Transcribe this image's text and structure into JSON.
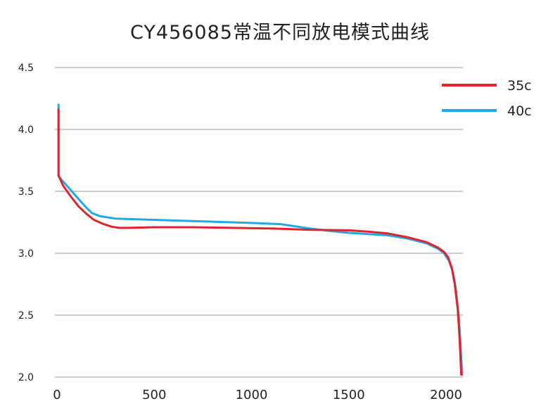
{
  "chart_data": {
    "type": "line",
    "title": "CY456085常温不同放电模式曲线",
    "xlabel": "",
    "ylabel": "",
    "xlim": [
      0,
      2200
    ],
    "ylim": [
      2.0,
      4.5
    ],
    "x_ticks": [
      "0",
      "500",
      "1000",
      "1500",
      "2000"
    ],
    "y_ticks": [
      "4.5",
      "4.0",
      "3.5",
      "3.0",
      "2.5",
      "2.0"
    ],
    "grid": "horizontal",
    "legend": "top-right",
    "series": [
      {
        "name": "35c",
        "color": "#e0242c",
        "points": [
          [
            8,
            4.16
          ],
          [
            8,
            3.63
          ],
          [
            30,
            3.55
          ],
          [
            70,
            3.46
          ],
          [
            110,
            3.38
          ],
          [
            150,
            3.32
          ],
          [
            190,
            3.27
          ],
          [
            240,
            3.235
          ],
          [
            280,
            3.215
          ],
          [
            320,
            3.205
          ],
          [
            360,
            3.205
          ],
          [
            500,
            3.21
          ],
          [
            700,
            3.21
          ],
          [
            900,
            3.205
          ],
          [
            1100,
            3.2
          ],
          [
            1300,
            3.19
          ],
          [
            1500,
            3.185
          ],
          [
            1600,
            3.175
          ],
          [
            1700,
            3.16
          ],
          [
            1800,
            3.13
          ],
          [
            1900,
            3.09
          ],
          [
            1960,
            3.045
          ],
          [
            1990,
            3.01
          ],
          [
            2010,
            2.97
          ],
          [
            2030,
            2.88
          ],
          [
            2045,
            2.75
          ],
          [
            2060,
            2.55
          ],
          [
            2070,
            2.3
          ],
          [
            2078,
            2.02
          ]
        ]
      },
      {
        "name": "40c",
        "color": "#22a9e2",
        "points": [
          [
            8,
            4.2
          ],
          [
            8,
            3.62
          ],
          [
            60,
            3.53
          ],
          [
            110,
            3.44
          ],
          [
            150,
            3.37
          ],
          [
            180,
            3.325
          ],
          [
            220,
            3.3
          ],
          [
            300,
            3.28
          ],
          [
            500,
            3.27
          ],
          [
            800,
            3.255
          ],
          [
            1000,
            3.245
          ],
          [
            1150,
            3.235
          ],
          [
            1300,
            3.2
          ],
          [
            1400,
            3.18
          ],
          [
            1500,
            3.165
          ],
          [
            1600,
            3.155
          ],
          [
            1700,
            3.145
          ],
          [
            1800,
            3.12
          ],
          [
            1900,
            3.08
          ],
          [
            1960,
            3.035
          ],
          [
            1990,
            3.0
          ],
          [
            2015,
            2.94
          ],
          [
            2035,
            2.85
          ],
          [
            2050,
            2.72
          ],
          [
            2065,
            2.5
          ],
          [
            2075,
            2.25
          ],
          [
            2083,
            2.02
          ]
        ]
      }
    ]
  }
}
